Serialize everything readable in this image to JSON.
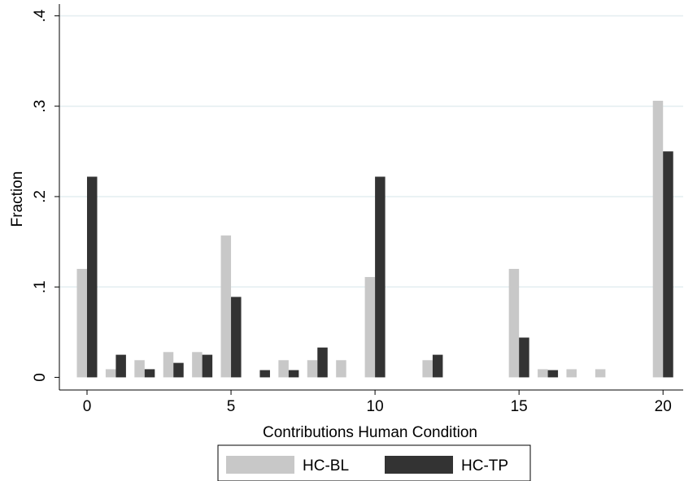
{
  "chart_data": {
    "type": "bar",
    "x_label": "Contributions Human Condition",
    "y_label": "Fraction",
    "x": [
      0,
      1,
      2,
      3,
      4,
      5,
      6,
      7,
      8,
      9,
      10,
      11,
      12,
      13,
      14,
      15,
      16,
      17,
      18,
      19,
      20
    ],
    "series": [
      {
        "name": "HC-BL",
        "color": "#c8c8c8",
        "values": [
          0.12,
          0.009,
          0.019,
          0.028,
          0.028,
          0.157,
          0,
          0.019,
          0.019,
          0.019,
          0.111,
          0,
          0.019,
          0,
          0,
          0.12,
          0.009,
          0.009,
          0.009,
          0,
          0.306
        ]
      },
      {
        "name": "HC-TP",
        "color": "#333333",
        "values": [
          0.222,
          0.025,
          0.009,
          0.016,
          0.025,
          0.089,
          0.008,
          0.008,
          0.033,
          0,
          0.222,
          0,
          0.025,
          0,
          0,
          0.044,
          0.008,
          0,
          0,
          0,
          0.25
        ]
      }
    ],
    "xlim": [
      -0.96,
      20.7
    ],
    "xticks": [
      0,
      5,
      10,
      15,
      20
    ],
    "ylim": [
      -0.014,
      0.413
    ],
    "yticks": [
      0,
      {
        "value": 0.1,
        "label": ".1"
      },
      {
        "value": 0.2,
        "label": ".2"
      },
      {
        "value": 0.3,
        "label": ".3"
      },
      {
        "value": 0.4,
        "label": ".4"
      }
    ],
    "grid": true,
    "legend": "bottom"
  }
}
